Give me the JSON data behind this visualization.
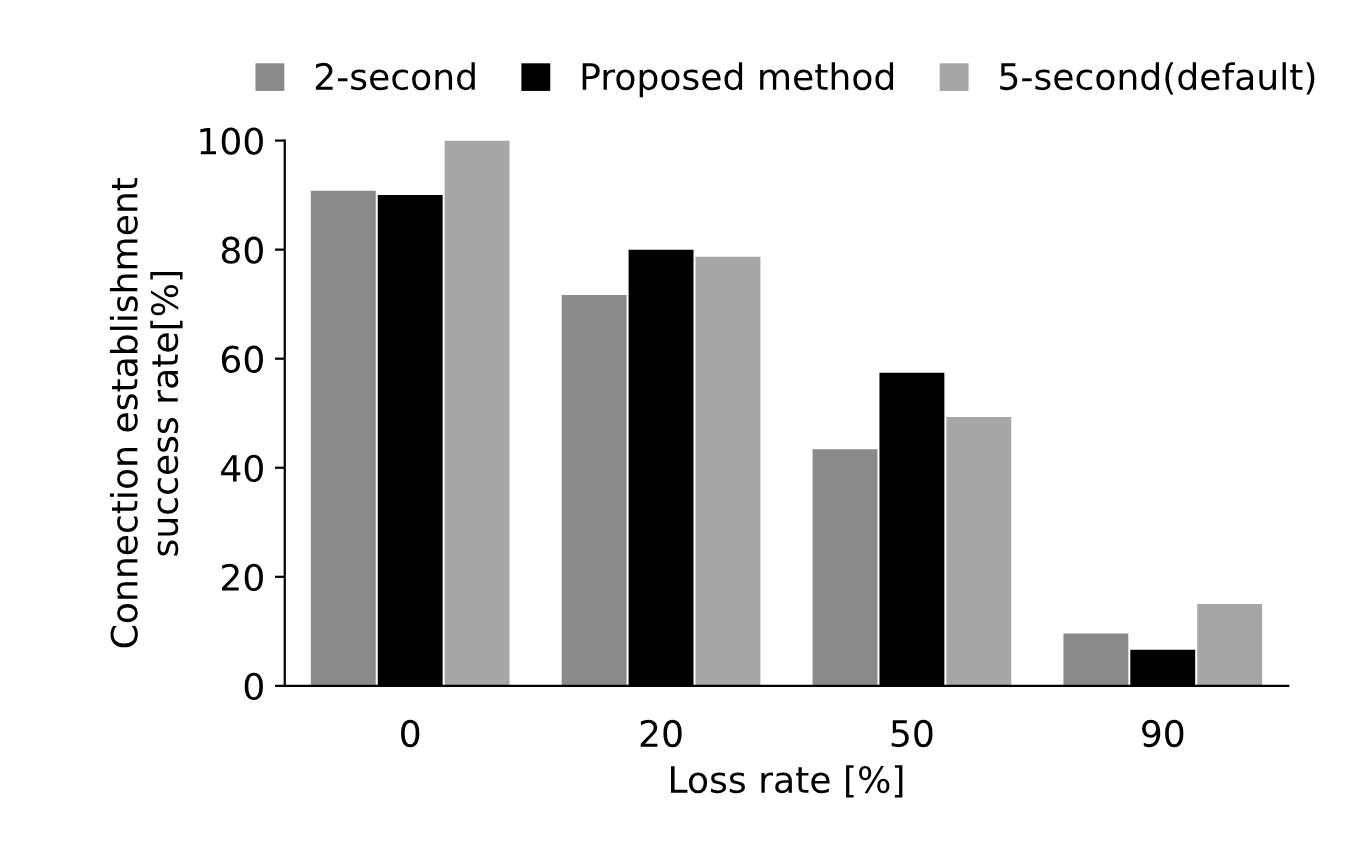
{
  "chart_data": {
    "type": "bar",
    "xlabel": "Loss rate [%]",
    "ylabel": "Connection establishment\nsuccess rate[%]",
    "categories": [
      "0",
      "20",
      "50",
      "90"
    ],
    "series": [
      {
        "name": "2-second",
        "color": "#8a8a8a",
        "values": [
          90.8,
          71.7,
          43.4,
          9.6
        ]
      },
      {
        "name": "Proposed method",
        "color": "#000000",
        "values": [
          90,
          80,
          57.4,
          6.6
        ]
      },
      {
        "name": "5-second(default)",
        "color": "#a6a6a6",
        "values": [
          100,
          78.7,
          49.3,
          15
        ]
      }
    ],
    "ylim": [
      0,
      100
    ],
    "yticks": [
      0,
      20,
      40,
      60,
      80,
      100
    ],
    "grid": false,
    "legend": "top"
  }
}
